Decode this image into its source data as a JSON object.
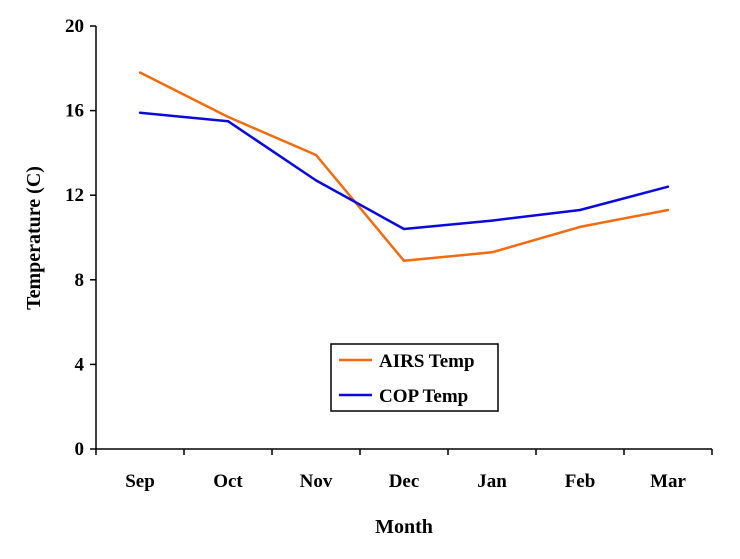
{
  "chart_data": {
    "type": "line",
    "categories": [
      "Sep",
      "Oct",
      "Nov",
      "Dec",
      "Jan",
      "Feb",
      "Mar"
    ],
    "series": [
      {
        "name": "AIRS Temp",
        "color": "#F26B0F",
        "values": [
          17.8,
          15.7,
          13.9,
          8.9,
          9.3,
          10.5,
          11.3
        ]
      },
      {
        "name": "COP Temp",
        "color": "#0A0ADC",
        "values": [
          15.9,
          15.5,
          12.7,
          10.4,
          10.8,
          11.3,
          12.4
        ]
      }
    ],
    "title": "",
    "xlabel": "Month",
    "ylabel": "Temperature (C)",
    "ylim": [
      0,
      20
    ],
    "yticks": [
      0,
      4,
      8,
      12,
      16,
      20
    ],
    "grid": false,
    "legend_position": "lower-center"
  }
}
